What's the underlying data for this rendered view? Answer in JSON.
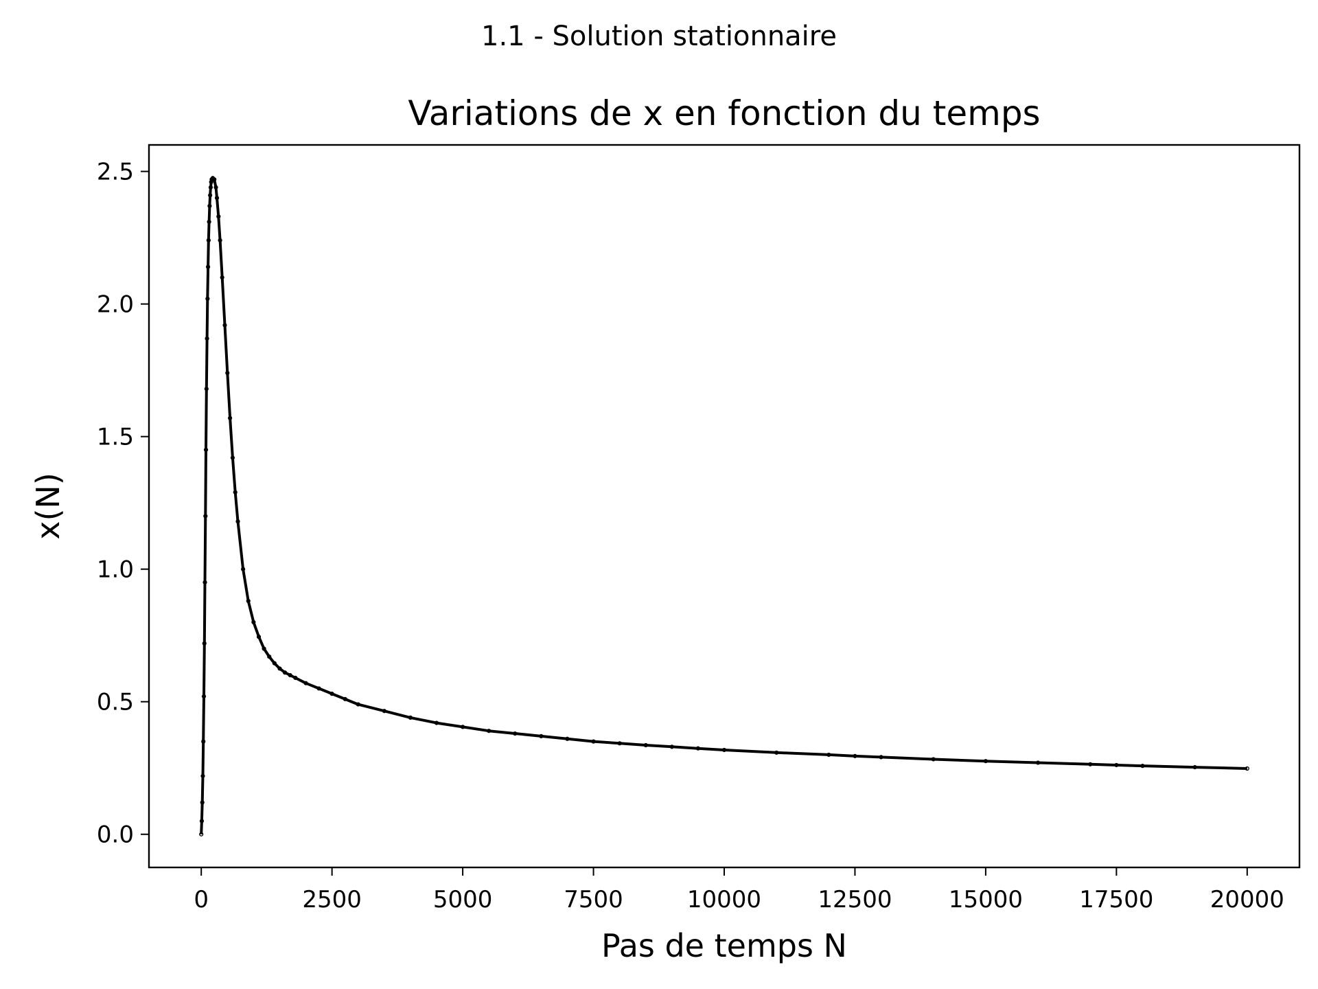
{
  "figure": {
    "suptitle": "1.1 - Solution stationnaire"
  },
  "chart_data": {
    "type": "scatter",
    "title": "Variations de x en fonction du temps",
    "xlabel": "Pas de temps N",
    "ylabel": "x(N)",
    "xlim": [
      -1000,
      21000
    ],
    "ylim": [
      -0.125,
      2.6
    ],
    "xticks": [
      0,
      2500,
      5000,
      7500,
      10000,
      12500,
      15000,
      17500,
      20000
    ],
    "xtick_labels": [
      "0",
      "2500",
      "5000",
      "7500",
      "10000",
      "12500",
      "15000",
      "17500",
      "20000"
    ],
    "yticks": [
      0.0,
      0.5,
      1.0,
      1.5,
      2.0,
      2.5
    ],
    "ytick_labels": [
      "0.0",
      "0.5",
      "1.0",
      "1.5",
      "2.0",
      "2.5"
    ],
    "grid": false,
    "legend": "none",
    "marker_color": "#000000",
    "series": [
      {
        "x": [
          0,
          10,
          20,
          30,
          40,
          50,
          60,
          70,
          80,
          90,
          100,
          110,
          120,
          130,
          140,
          150,
          160,
          170,
          180,
          190,
          200,
          220,
          250,
          280,
          300,
          330,
          360,
          400,
          450,
          500,
          550,
          600,
          650,
          700,
          800,
          900,
          1000,
          1100,
          1200,
          1300,
          1400,
          1500,
          1600,
          1700,
          1800,
          2000,
          2250,
          2500,
          2750,
          3000,
          3500,
          4000,
          4500,
          5000,
          5500,
          6000,
          6500,
          7000,
          7500,
          8000,
          8500,
          9000,
          9500,
          10000,
          11000,
          12000,
          12500,
          13000,
          14000,
          15000,
          16000,
          17000,
          17500,
          18000,
          19000,
          20000
        ],
        "y": [
          0.0,
          0.05,
          0.12,
          0.22,
          0.35,
          0.52,
          0.72,
          0.95,
          1.2,
          1.45,
          1.68,
          1.87,
          2.02,
          2.14,
          2.24,
          2.31,
          2.37,
          2.41,
          2.44,
          2.46,
          2.47,
          2.475,
          2.47,
          2.44,
          2.4,
          2.33,
          2.24,
          2.1,
          1.92,
          1.74,
          1.57,
          1.42,
          1.29,
          1.18,
          1.0,
          0.88,
          0.8,
          0.745,
          0.7,
          0.67,
          0.645,
          0.625,
          0.61,
          0.6,
          0.59,
          0.57,
          0.55,
          0.53,
          0.51,
          0.49,
          0.465,
          0.44,
          0.42,
          0.405,
          0.39,
          0.38,
          0.37,
          0.36,
          0.35,
          0.343,
          0.336,
          0.33,
          0.324,
          0.318,
          0.308,
          0.3,
          0.295,
          0.291,
          0.283,
          0.276,
          0.27,
          0.264,
          0.261,
          0.258,
          0.253,
          0.248
        ]
      }
    ]
  }
}
